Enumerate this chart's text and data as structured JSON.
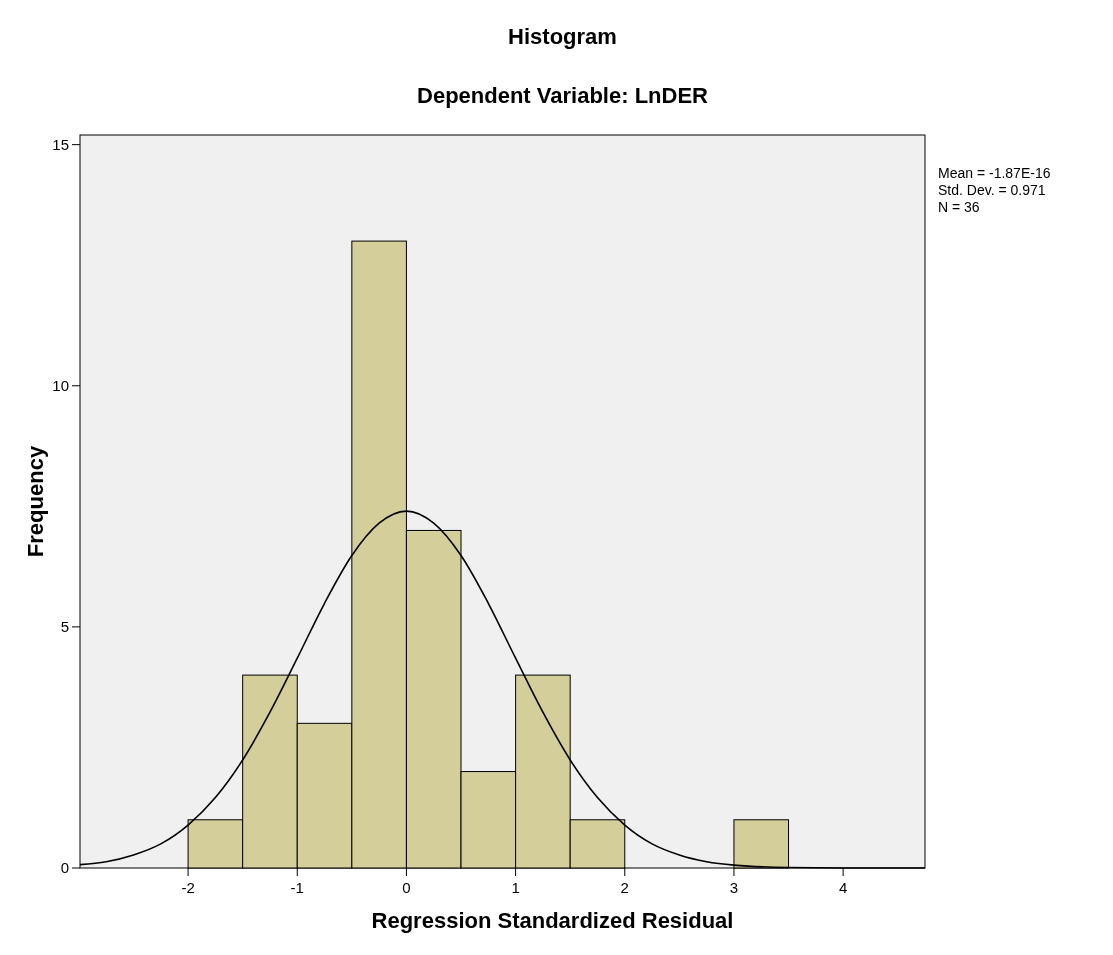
{
  "chart_data": {
    "type": "histogram",
    "title": "Histogram",
    "subtitle": "Dependent Variable: LnDER",
    "xlabel": "Regression Standardized Residual",
    "ylabel": "Frequency",
    "bins": [
      -2,
      -1.5,
      -1,
      -0.5,
      0,
      0.5,
      1,
      1.5,
      2,
      2.5,
      3,
      3.5
    ],
    "values": [
      1,
      4,
      3,
      13,
      7,
      2,
      4,
      1,
      0,
      0,
      1
    ],
    "color": "#d3ce9a",
    "series": [
      {
        "type": "line",
        "color": "#000000",
        "x": [
          -2.99,
          -2.75,
          -2.5,
          -2.25,
          -2,
          -1.75,
          -1.5,
          -1.25,
          -1,
          -0.75,
          -0.5,
          -0.25,
          0,
          0.25,
          0.5,
          0.75,
          1,
          1.25,
          1.5,
          1.75,
          2,
          2.25,
          2.5,
          2.75,
          3,
          3.5,
          4,
          4.75
        ],
        "values": [
          0.07,
          0.13,
          0.27,
          0.5,
          0.89,
          1.46,
          2.24,
          3.23,
          4.35,
          5.49,
          6.48,
          7.15,
          7.4,
          7.15,
          6.48,
          5.49,
          4.35,
          3.23,
          2.24,
          1.46,
          0.89,
          0.5,
          0.27,
          0.13,
          0.06,
          0.01,
          0,
          0
        ]
      }
    ],
    "xlim": [
      -2.99,
      4.75
    ],
    "xticks": [
      -2,
      -1,
      0,
      1,
      2,
      3,
      4
    ],
    "ylim": [
      0,
      15.2
    ],
    "yticks": [
      0,
      5,
      10,
      15
    ],
    "grid": false,
    "annotations": [
      "Mean = -1.87E-16",
      "Std. Dev. = 0.971",
      "N = 36"
    ]
  }
}
